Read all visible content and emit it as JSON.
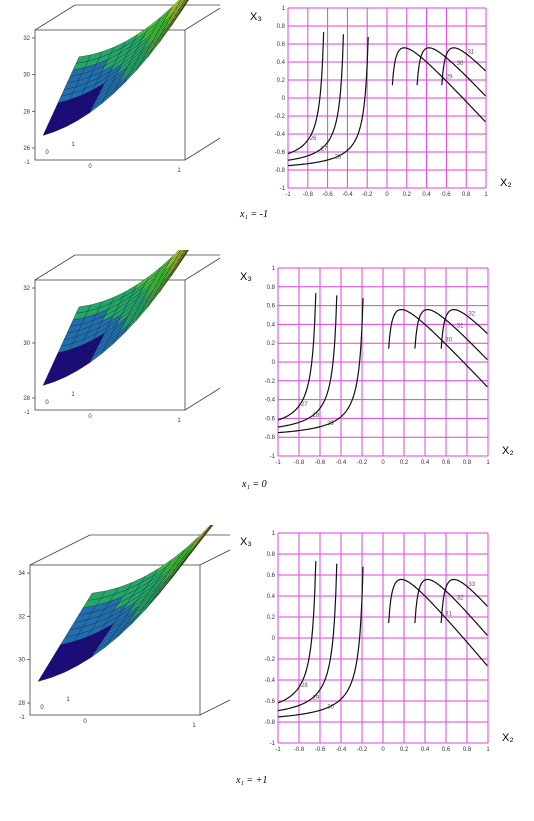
{
  "chart_data": [
    {
      "type": "surface",
      "row": 0,
      "caption": "x₁ = -1",
      "z_ticks": [
        "32",
        "30",
        "28",
        "26"
      ],
      "base_ticks": [
        "-1",
        "0",
        "1",
        "0",
        "1"
      ],
      "colors": [
        "#1a0a80",
        "#1f6fb0",
        "#22a86a",
        "#3fc23a",
        "#a8d820",
        "#e8c21c",
        "#e05020"
      ]
    },
    {
      "type": "contour",
      "row": 0,
      "xlabel": "X₂",
      "ylabel": "X₃",
      "xlim": [
        -1,
        1
      ],
      "ylim": [
        -1,
        1
      ],
      "x_ticks": [
        "-1",
        "-0.8",
        "-0.6",
        "-0.4",
        "-0.2",
        "0",
        "0.2",
        "0.4",
        "0.6",
        "0.8",
        "1"
      ],
      "y_ticks": [
        "1",
        "0.8",
        "0.6",
        "0.4",
        "0.2",
        "0",
        "-0.2",
        "-0.4",
        "-0.6",
        "-0.8",
        "-1"
      ],
      "grid": true,
      "grid_color": "#e040e0",
      "levels": [
        {
          "label": "26",
          "vx": -0.6,
          "dir": "left"
        },
        {
          "label": "27",
          "vx": -0.4,
          "dir": "left"
        },
        {
          "label": "28",
          "vx": -0.15,
          "dir": "left"
        },
        {
          "label": "29",
          "vx": 0.05,
          "dir": "right"
        },
        {
          "label": "30",
          "vx": 0.3,
          "dir": "right"
        },
        {
          "label": "31",
          "vx": 0.55,
          "dir": "right"
        }
      ]
    },
    {
      "type": "surface",
      "row": 1,
      "caption": "x₁ = 0",
      "z_ticks": [
        "32",
        "30",
        "28"
      ],
      "base_ticks": [
        "-1",
        "0",
        "1",
        "0",
        "1"
      ],
      "colors": [
        "#1a0a80",
        "#1f6fb0",
        "#22a86a",
        "#3fc23a",
        "#a8d820",
        "#e8c21c",
        "#e05020"
      ]
    },
    {
      "type": "contour",
      "row": 1,
      "xlabel": "X₂",
      "ylabel": "X₃",
      "xlim": [
        -1,
        1
      ],
      "ylim": [
        -1,
        1
      ],
      "x_ticks": [
        "-1",
        "-0.8",
        "-0.6",
        "-0.4",
        "-0.2",
        "0",
        "0.2",
        "0.4",
        "0.6",
        "0.8",
        "1"
      ],
      "y_ticks": [
        "1",
        "0.8",
        "0.6",
        "0.4",
        "0.2",
        "0",
        "-0.2",
        "-0.4",
        "-0.6",
        "-0.8",
        "-1"
      ],
      "grid": true,
      "grid_color": "#e040e0",
      "levels": [
        {
          "label": "27",
          "vx": -0.6,
          "dir": "left"
        },
        {
          "label": "28",
          "vx": -0.4,
          "dir": "left"
        },
        {
          "label": "29",
          "vx": -0.15,
          "dir": "left"
        },
        {
          "label": "30",
          "vx": 0.05,
          "dir": "right"
        },
        {
          "label": "31",
          "vx": 0.3,
          "dir": "right"
        },
        {
          "label": "32",
          "vx": 0.55,
          "dir": "right"
        }
      ]
    },
    {
      "type": "surface",
      "row": 2,
      "caption": "x₁ = +1",
      "z_ticks": [
        "34",
        "32",
        "30",
        "28"
      ],
      "base_ticks": [
        "-1",
        "0",
        "1",
        "0",
        "1"
      ],
      "colors": [
        "#1a0a80",
        "#1f6fb0",
        "#22a86a",
        "#3fc23a",
        "#a8d820",
        "#e8c21c",
        "#e05020"
      ]
    },
    {
      "type": "contour",
      "row": 2,
      "xlabel": "X₂",
      "ylabel": "X₃",
      "xlim": [
        -1,
        1
      ],
      "ylim": [
        -1,
        1
      ],
      "x_ticks": [
        "-1",
        "-0.8",
        "-0.6",
        "-0.4",
        "-0.2",
        "0",
        "0.2",
        "0.4",
        "0.6",
        "0.8",
        "1"
      ],
      "y_ticks": [
        "1",
        "0.8",
        "0.6",
        "0.4",
        "0.2",
        "0",
        "-0.2",
        "-0.4",
        "-0.6",
        "-0.8",
        "-1"
      ],
      "grid": true,
      "grid_color": "#e040e0",
      "levels": [
        {
          "label": "28",
          "vx": -0.6,
          "dir": "left"
        },
        {
          "label": "29",
          "vx": -0.4,
          "dir": "left"
        },
        {
          "label": "30",
          "vx": -0.15,
          "dir": "left"
        },
        {
          "label": "31",
          "vx": 0.05,
          "dir": "right"
        },
        {
          "label": "32",
          "vx": 0.3,
          "dir": "right"
        },
        {
          "label": "33",
          "vx": 0.55,
          "dir": "right"
        }
      ]
    }
  ]
}
